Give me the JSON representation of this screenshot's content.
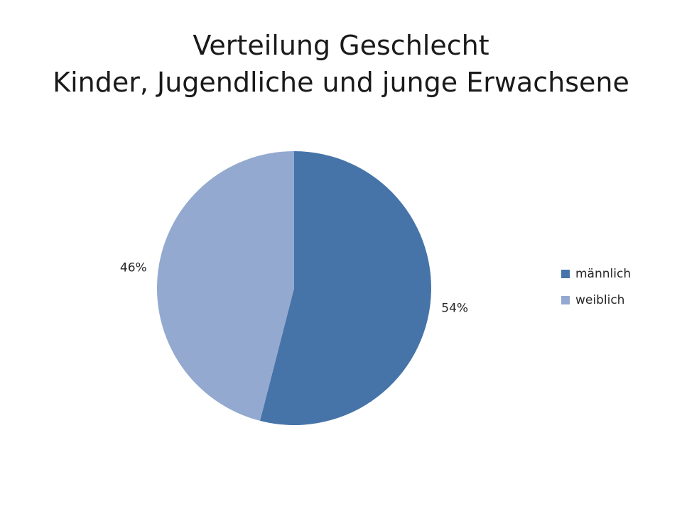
{
  "title": {
    "line1": "Verteilung Geschlecht",
    "line2": "Kinder, Jugendliche und junge Erwachsene"
  },
  "colors": {
    "männlich": "#4674A8",
    "weiblich": "#93A9D0"
  },
  "chart_data": {
    "type": "pie",
    "title": "Verteilung Geschlecht Kinder, Jugendliche und junge Erwachsene",
    "categories": [
      "männlich",
      "weiblich"
    ],
    "values": [
      54,
      46
    ],
    "data_labels": [
      "54%",
      "46%"
    ],
    "start_angle_deg": 0,
    "direction": "clockwise",
    "legend": {
      "placement": "right",
      "entries": [
        "männlich",
        "weiblich"
      ]
    }
  }
}
